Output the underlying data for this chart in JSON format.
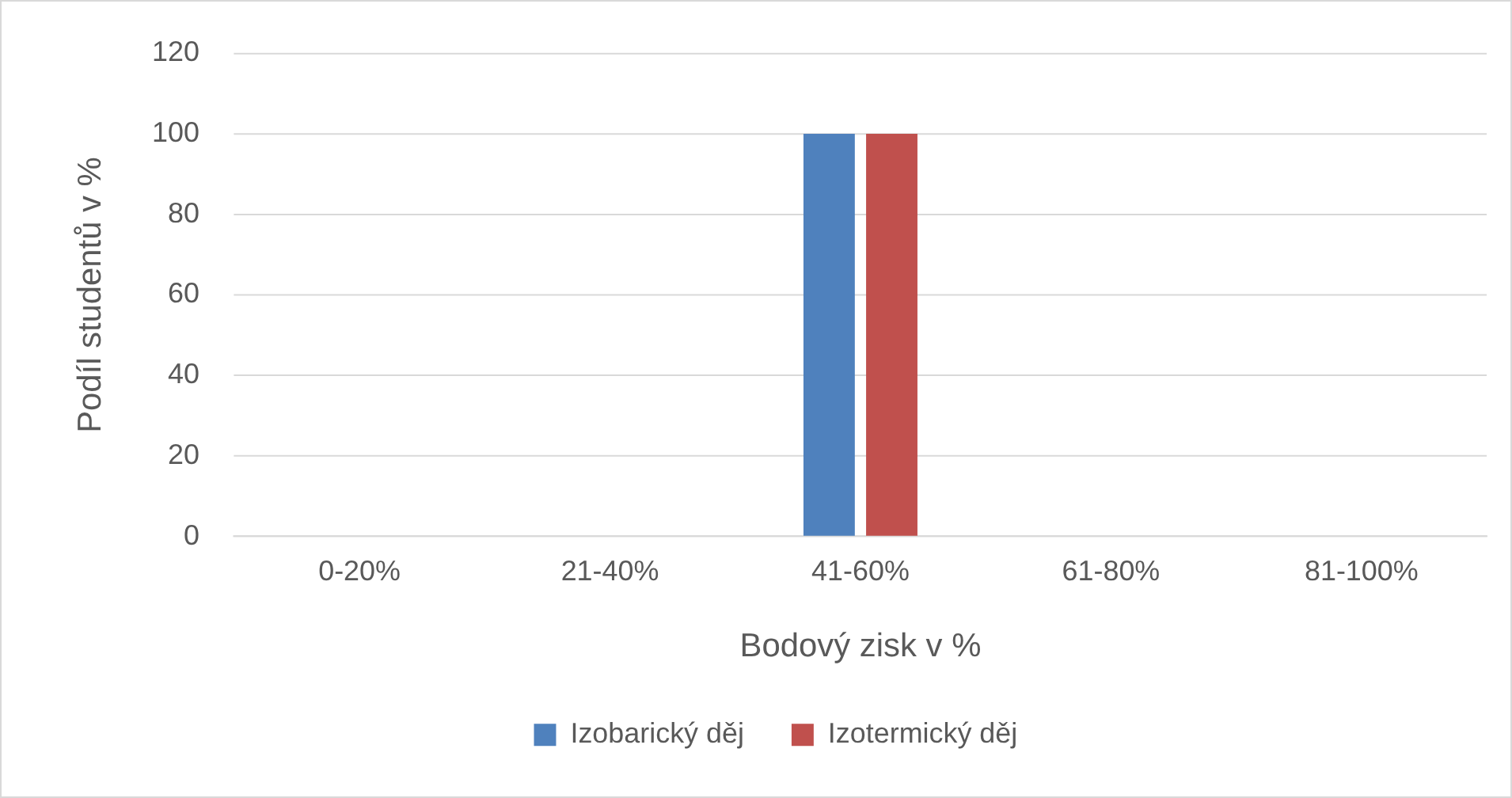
{
  "chart_data": {
    "type": "bar",
    "xlabel": "Bodový zisk v %",
    "ylabel": "Podíl studentů v %",
    "categories": [
      "0-20%",
      "21-40%",
      "41-60%",
      "61-80%",
      "81-100%"
    ],
    "series": [
      {
        "name": "Izobarický děj",
        "color": "#4f81bd",
        "values": [
          0,
          0,
          100,
          0,
          0
        ]
      },
      {
        "name": "Izotermický děj",
        "color": "#c0504d",
        "values": [
          0,
          0,
          100,
          0,
          0
        ]
      }
    ],
    "ylim": [
      0,
      120
    ],
    "yticks": [
      0,
      20,
      40,
      60,
      80,
      100,
      120
    ],
    "grid": "y",
    "legend": "bottom"
  }
}
